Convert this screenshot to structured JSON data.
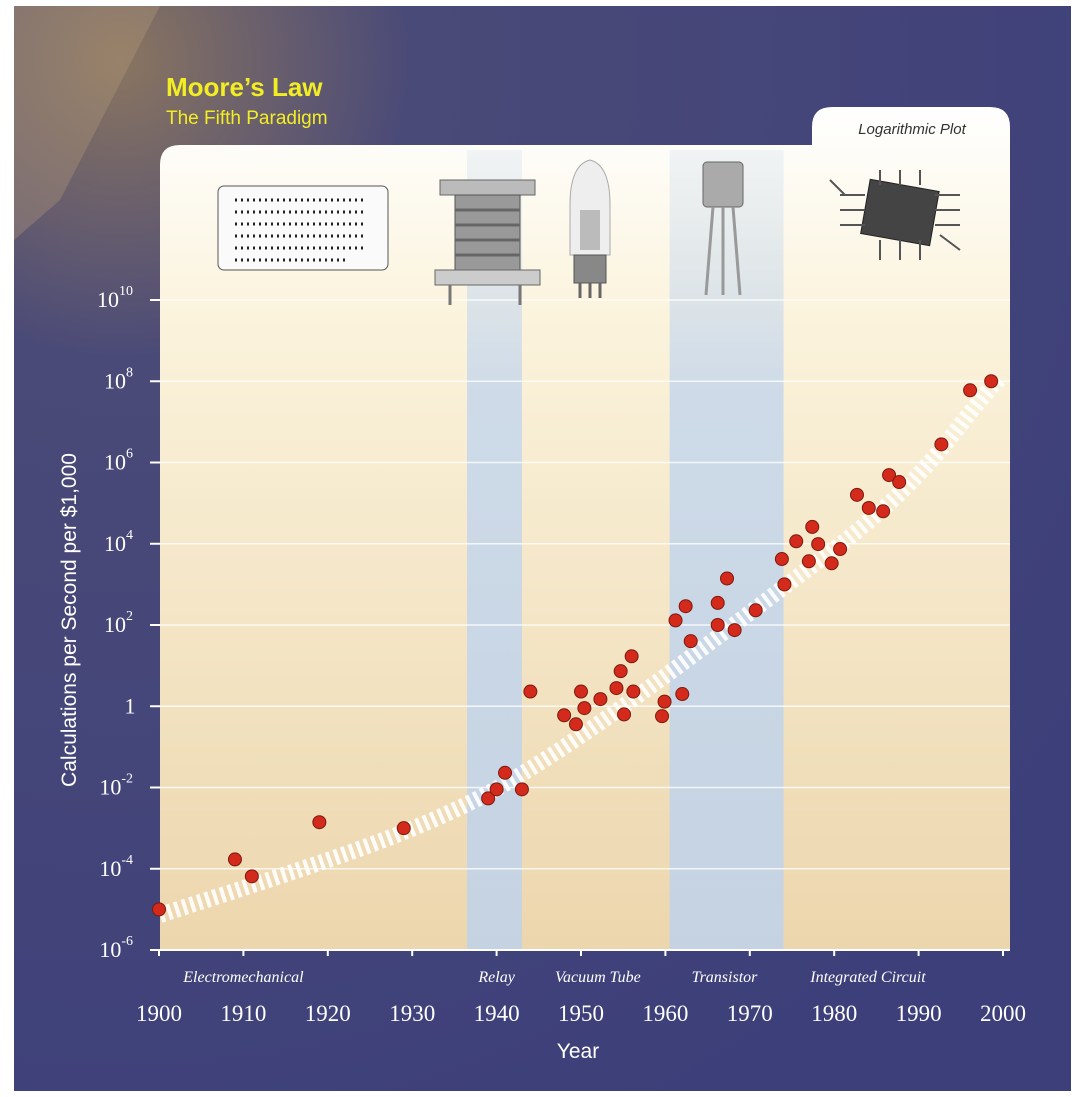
{
  "chart_data": {
    "type": "scatter",
    "title": "Moore’s Law",
    "subtitle": "The Fifth Paradigm",
    "annotation": "Logarithmic Plot",
    "x_label": "Year",
    "y_label": "Calculations per Second per $1,000",
    "y_log": true,
    "grid": true,
    "color": "#d42a1c",
    "xlim": [
      1900,
      2000
    ],
    "xticks": [
      1900,
      1910,
      1920,
      1930,
      1940,
      1950,
      1960,
      1970,
      1980,
      1990,
      2000
    ],
    "ylim": [
      1e-06,
      10000000000.0
    ],
    "yticks": [
      {
        "value": 1e-06,
        "label": "10",
        "exponent": "-6"
      },
      {
        "value": 0.0001,
        "label": "10",
        "exponent": "-4"
      },
      {
        "value": 0.01,
        "label": "10",
        "exponent": "-2"
      },
      1,
      {
        "value": 100,
        "label": "10",
        "exponent": "2"
      },
      {
        "value": 10000,
        "label": "10",
        "exponent": "4"
      },
      {
        "value": 1000000,
        "label": "10",
        "exponent": "6"
      },
      {
        "value": 100000000,
        "label": "10",
        "exponent": "8"
      },
      {
        "value": 10000000000,
        "label": "10",
        "exponent": "10"
      }
    ],
    "paradigms": [
      {
        "label": "Electromechanical",
        "x": 1910
      },
      {
        "label": "Relay",
        "x": 1940
      },
      {
        "label": "Vacuum Tube",
        "x": 1952
      },
      {
        "label": "Transistor",
        "x": 1967
      },
      {
        "label": "Integrated Circuit",
        "x": 1984
      }
    ],
    "shaded_bands": [
      [
        1936.5,
        1943
      ],
      [
        1960.5,
        1974
      ]
    ],
    "x": [
      1900,
      1909,
      1911,
      1919,
      1929,
      1939,
      1940,
      1941,
      1943,
      1944,
      1948,
      1949.4,
      1950,
      1950.4,
      1952.3,
      1954.2,
      1954.7,
      1955.1,
      1956.2,
      1956,
      1959.6,
      1959.9,
      1961.2,
      1962,
      1962.4,
      1963,
      1966.2,
      1966.2,
      1967.3,
      1968.2,
      1970.7,
      1973.8,
      1974.1,
      1975.5,
      1977,
      1977.4,
      1978.1,
      1979.7,
      1980.7,
      1982.7,
      1984.1,
      1985.8,
      1986.5,
      1987.7,
      1992.7,
      1996.1,
      1998.6
    ],
    "values": [
      1e-05,
      0.00017,
      6.5e-05,
      0.0014,
      0.001,
      0.0054,
      0.009,
      0.023,
      0.009,
      2.3,
      0.6,
      0.36,
      2.3,
      0.9,
      1.5,
      2.8,
      7.3,
      0.63,
      2.3,
      17,
      0.57,
      1.3,
      130,
      2,
      290,
      40,
      350,
      100,
      1400,
      75,
      230,
      4200,
      1000,
      11500,
      3700,
      26000,
      9800,
      3300,
      7400,
      160000,
      76000,
      63000,
      490000,
      330000,
      2800000,
      60000000,
      100000000
    ]
  }
}
